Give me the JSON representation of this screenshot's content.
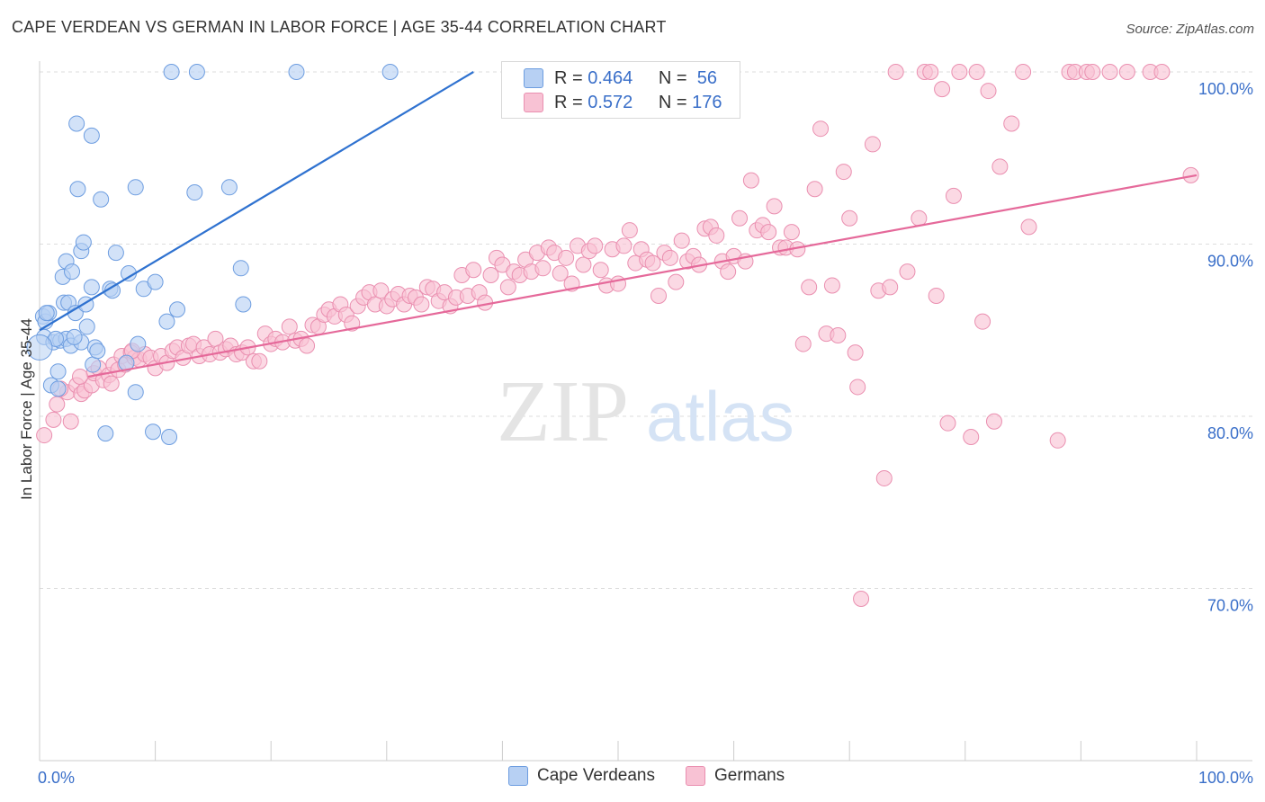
{
  "title": "CAPE VERDEAN VS GERMAN IN LABOR FORCE | AGE 35-44 CORRELATION CHART",
  "source": "Source: ZipAtlas.com",
  "colors": {
    "blue_fill": "#b7d0f3",
    "blue_stroke": "#6d9de0",
    "blue_line": "#2f72d0",
    "pink_fill": "#f8c2d4",
    "pink_stroke": "#ea8fb0",
    "pink_line": "#e5699a",
    "tick_label": "#3a6fc9"
  },
  "legend": {
    "rows": [
      {
        "r_label": "R =",
        "r": "0.464",
        "n_label": "N =",
        "n": "56"
      },
      {
        "r_label": "R =",
        "r": "0.572",
        "n_label": "N =",
        "n": "176"
      }
    ]
  },
  "bottom_legend": [
    "Cape Verdeans",
    "Germans"
  ],
  "watermark": {
    "zip": "ZIP",
    "atlas": "atlas"
  },
  "chart_data": {
    "type": "scatter",
    "title": "CAPE VERDEAN VS GERMAN IN LABOR FORCE | AGE 35-44 CORRELATION CHART",
    "xlabel": "",
    "ylabel": "In Labor Force | Age 35-44",
    "xlim": [
      0,
      100
    ],
    "ylim": [
      60,
      100
    ],
    "x_tick_labels": [
      "0.0%",
      "100.0%"
    ],
    "y_ticks": [
      70,
      80,
      90,
      100
    ],
    "y_tick_labels": [
      "70.0%",
      "80.0%",
      "90.0%",
      "100.0%"
    ],
    "grid": "horizontal dashed",
    "legend_position": "top-center",
    "series": [
      {
        "name": "Cape Verdeans",
        "R": 0.464,
        "N": 56,
        "trend": {
          "x": [
            0,
            37.5
          ],
          "y": [
            85.0,
            100.0
          ]
        },
        "points": [
          [
            0.3,
            85.8
          ],
          [
            0.5,
            85.5
          ],
          [
            0.8,
            86.0
          ],
          [
            0.4,
            84.6
          ],
          [
            1.2,
            84.3
          ],
          [
            1.0,
            81.8
          ],
          [
            1.6,
            82.6
          ],
          [
            1.6,
            81.6
          ],
          [
            1.8,
            84.4
          ],
          [
            2.0,
            88.1
          ],
          [
            2.1,
            86.6
          ],
          [
            2.3,
            89.0
          ],
          [
            2.3,
            84.5
          ],
          [
            2.5,
            86.6
          ],
          [
            2.7,
            84.1
          ],
          [
            2.8,
            88.4
          ],
          [
            3.1,
            86.0
          ],
          [
            3.2,
            97.0
          ],
          [
            3.3,
            93.2
          ],
          [
            3.6,
            89.6
          ],
          [
            3.6,
            84.3
          ],
          [
            3.8,
            90.1
          ],
          [
            4.0,
            86.5
          ],
          [
            4.1,
            85.2
          ],
          [
            4.5,
            96.3
          ],
          [
            4.5,
            87.5
          ],
          [
            4.6,
            83.0
          ],
          [
            4.8,
            84.0
          ],
          [
            5.0,
            83.8
          ],
          [
            5.3,
            92.6
          ],
          [
            5.7,
            79.0
          ],
          [
            6.1,
            87.4
          ],
          [
            6.3,
            87.3
          ],
          [
            6.6,
            89.5
          ],
          [
            7.7,
            88.3
          ],
          [
            7.5,
            83.1
          ],
          [
            8.3,
            93.3
          ],
          [
            8.3,
            81.4
          ],
          [
            8.5,
            84.2
          ],
          [
            9.0,
            87.4
          ],
          [
            9.8,
            79.1
          ],
          [
            10.0,
            87.8
          ],
          [
            11.0,
            85.5
          ],
          [
            11.2,
            78.8
          ],
          [
            11.4,
            100.0
          ],
          [
            11.9,
            86.2
          ],
          [
            13.4,
            93.0
          ],
          [
            13.6,
            100.0
          ],
          [
            16.4,
            93.3
          ],
          [
            17.4,
            88.6
          ],
          [
            17.6,
            86.5
          ],
          [
            22.2,
            100.0
          ],
          [
            30.3,
            100.0
          ],
          [
            0.6,
            86.0
          ],
          [
            1.4,
            84.5
          ],
          [
            3.0,
            84.6
          ]
        ]
      },
      {
        "name": "Germans",
        "R": 0.572,
        "N": 176,
        "trend": {
          "x": [
            4.2,
            100.0
          ],
          "y": [
            82.3,
            94.0
          ]
        },
        "points": [
          [
            0.4,
            78.9
          ],
          [
            1.2,
            79.8
          ],
          [
            1.5,
            80.7
          ],
          [
            2.4,
            81.4
          ],
          [
            2.7,
            79.7
          ],
          [
            3.2,
            81.8
          ],
          [
            3.6,
            81.3
          ],
          [
            3.9,
            81.5
          ],
          [
            4.5,
            81.8
          ],
          [
            4.7,
            82.5
          ],
          [
            5.1,
            82.8
          ],
          [
            5.5,
            82.1
          ],
          [
            6.0,
            82.4
          ],
          [
            6.4,
            83.0
          ],
          [
            6.8,
            82.7
          ],
          [
            7.1,
            83.5
          ],
          [
            7.4,
            83.0
          ],
          [
            7.9,
            83.7
          ],
          [
            8.2,
            83.4
          ],
          [
            8.6,
            83.3
          ],
          [
            9.1,
            83.6
          ],
          [
            9.6,
            83.4
          ],
          [
            10.0,
            82.8
          ],
          [
            10.5,
            83.5
          ],
          [
            11.0,
            83.1
          ],
          [
            11.5,
            83.8
          ],
          [
            11.9,
            84.0
          ],
          [
            12.4,
            83.4
          ],
          [
            12.9,
            84.1
          ],
          [
            13.3,
            84.2
          ],
          [
            13.8,
            83.5
          ],
          [
            14.2,
            84.0
          ],
          [
            14.7,
            83.6
          ],
          [
            15.2,
            84.5
          ],
          [
            15.6,
            83.7
          ],
          [
            16.1,
            83.9
          ],
          [
            16.5,
            84.1
          ],
          [
            17.0,
            83.6
          ],
          [
            17.5,
            83.7
          ],
          [
            18.0,
            84.0
          ],
          [
            18.5,
            83.2
          ],
          [
            19.0,
            83.2
          ],
          [
            19.5,
            84.8
          ],
          [
            20.0,
            84.2
          ],
          [
            20.4,
            84.5
          ],
          [
            21.0,
            84.3
          ],
          [
            21.6,
            85.2
          ],
          [
            22.1,
            84.4
          ],
          [
            22.6,
            84.5
          ],
          [
            23.1,
            84.1
          ],
          [
            23.6,
            85.3
          ],
          [
            24.1,
            85.2
          ],
          [
            24.6,
            85.9
          ],
          [
            25.0,
            86.2
          ],
          [
            25.5,
            85.8
          ],
          [
            26.0,
            86.5
          ],
          [
            26.5,
            85.9
          ],
          [
            27.0,
            85.4
          ],
          [
            27.5,
            86.4
          ],
          [
            28.0,
            86.9
          ],
          [
            28.5,
            87.2
          ],
          [
            29.0,
            86.5
          ],
          [
            29.5,
            87.3
          ],
          [
            30.0,
            86.4
          ],
          [
            30.5,
            86.8
          ],
          [
            31.0,
            87.1
          ],
          [
            31.5,
            86.5
          ],
          [
            32.0,
            87.0
          ],
          [
            32.5,
            86.9
          ],
          [
            33.0,
            86.5
          ],
          [
            33.5,
            87.5
          ],
          [
            34.0,
            87.4
          ],
          [
            34.5,
            86.7
          ],
          [
            35.0,
            87.2
          ],
          [
            35.5,
            86.4
          ],
          [
            36.0,
            86.9
          ],
          [
            36.5,
            88.2
          ],
          [
            37.0,
            87.0
          ],
          [
            37.5,
            88.5
          ],
          [
            38.0,
            87.2
          ],
          [
            38.5,
            86.6
          ],
          [
            39.0,
            88.2
          ],
          [
            39.5,
            89.2
          ],
          [
            40.0,
            88.8
          ],
          [
            40.5,
            87.5
          ],
          [
            41.0,
            88.4
          ],
          [
            41.5,
            88.2
          ],
          [
            42.0,
            89.1
          ],
          [
            42.5,
            88.4
          ],
          [
            43.0,
            89.5
          ],
          [
            43.5,
            88.6
          ],
          [
            44.0,
            89.8
          ],
          [
            44.5,
            89.5
          ],
          [
            45.0,
            88.3
          ],
          [
            45.5,
            89.2
          ],
          [
            46.0,
            87.7
          ],
          [
            46.5,
            89.9
          ],
          [
            47.0,
            88.8
          ],
          [
            47.5,
            89.6
          ],
          [
            48.0,
            89.9
          ],
          [
            48.5,
            88.5
          ],
          [
            49.0,
            87.6
          ],
          [
            49.5,
            89.7
          ],
          [
            50.0,
            87.7
          ],
          [
            50.5,
            89.9
          ],
          [
            51.0,
            90.8
          ],
          [
            51.5,
            88.9
          ],
          [
            52.0,
            89.7
          ],
          [
            52.5,
            89.1
          ],
          [
            53.0,
            88.9
          ],
          [
            53.5,
            87.0
          ],
          [
            54.0,
            89.5
          ],
          [
            54.5,
            89.2
          ],
          [
            55.0,
            87.8
          ],
          [
            55.5,
            90.2
          ],
          [
            56.0,
            89.0
          ],
          [
            56.5,
            89.3
          ],
          [
            57.0,
            88.8
          ],
          [
            57.5,
            90.9
          ],
          [
            58.0,
            91.0
          ],
          [
            58.5,
            90.5
          ],
          [
            59.0,
            89.0
          ],
          [
            59.5,
            88.4
          ],
          [
            60.0,
            89.3
          ],
          [
            60.5,
            91.5
          ],
          [
            61.0,
            89.0
          ],
          [
            61.5,
            93.7
          ],
          [
            62.0,
            90.8
          ],
          [
            62.5,
            91.1
          ],
          [
            63.0,
            90.7
          ],
          [
            63.5,
            92.2
          ],
          [
            64.0,
            89.8
          ],
          [
            64.5,
            89.8
          ],
          [
            65.0,
            90.7
          ],
          [
            65.5,
            89.7
          ],
          [
            66.0,
            84.2
          ],
          [
            66.5,
            87.5
          ],
          [
            67.0,
            93.2
          ],
          [
            67.5,
            96.7
          ],
          [
            68.0,
            84.8
          ],
          [
            68.5,
            87.6
          ],
          [
            69.0,
            84.7
          ],
          [
            69.5,
            94.2
          ],
          [
            70.0,
            91.5
          ],
          [
            70.5,
            83.7
          ],
          [
            70.7,
            81.7
          ],
          [
            71.0,
            69.4
          ],
          [
            72.0,
            95.8
          ],
          [
            72.5,
            87.3
          ],
          [
            73.0,
            76.4
          ],
          [
            73.5,
            87.5
          ],
          [
            74.0,
            100.0
          ],
          [
            75.0,
            88.4
          ],
          [
            76.5,
            100.0
          ],
          [
            76.0,
            91.5
          ],
          [
            77.0,
            100.0
          ],
          [
            77.5,
            87.0
          ],
          [
            78.0,
            99.0
          ],
          [
            78.5,
            79.6
          ],
          [
            79.0,
            92.8
          ],
          [
            79.5,
            100.0
          ],
          [
            80.5,
            78.8
          ],
          [
            81.0,
            100.0
          ],
          [
            81.5,
            85.5
          ],
          [
            82.0,
            98.9
          ],
          [
            82.5,
            79.7
          ],
          [
            83.0,
            94.5
          ],
          [
            84.0,
            97.0
          ],
          [
            85.0,
            100.0
          ],
          [
            85.5,
            91.0
          ],
          [
            88.0,
            78.6
          ],
          [
            89.0,
            100.0
          ],
          [
            89.5,
            100.0
          ],
          [
            90.5,
            100.0
          ],
          [
            91.0,
            100.0
          ],
          [
            92.5,
            100.0
          ],
          [
            94.0,
            100.0
          ],
          [
            96.0,
            100.0
          ],
          [
            97.0,
            100.0
          ],
          [
            1.8,
            81.6
          ],
          [
            3.5,
            82.3
          ],
          [
            6.2,
            81.9
          ],
          [
            8.0,
            83.8
          ],
          [
            99.5,
            94.0
          ]
        ]
      }
    ]
  }
}
